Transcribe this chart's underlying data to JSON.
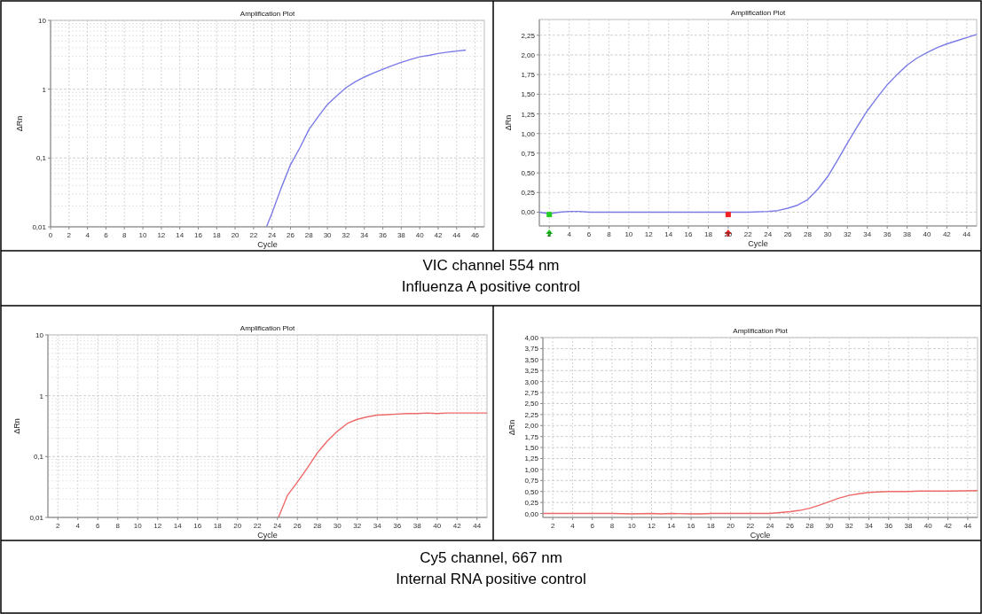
{
  "chart_data": [
    {
      "type": "line",
      "title": "Amplification Plot",
      "xlabel": "Cycle",
      "ylabel": "ΔRn",
      "log": "y",
      "grid": true,
      "xlim": [
        0,
        47
      ],
      "xticks": [
        0,
        2,
        4,
        6,
        8,
        10,
        12,
        14,
        16,
        18,
        20,
        22,
        24,
        26,
        28,
        30,
        32,
        34,
        36,
        38,
        40,
        42,
        44,
        46
      ],
      "ylim": [
        0.01,
        10
      ],
      "yticks": [
        {
          "value": 0.01,
          "label": "0,01"
        },
        {
          "value": 0.1,
          "label": "0,1"
        },
        {
          "value": 1,
          "label": "1"
        },
        {
          "value": 10,
          "label": "10"
        }
      ],
      "series": [
        {
          "color": "#7b7be8",
          "x": [
            23.4,
            24,
            25,
            26,
            27,
            28,
            29,
            30,
            31,
            32,
            33,
            34,
            35,
            36,
            37,
            38,
            39,
            40,
            41,
            42,
            43,
            44,
            45
          ],
          "values": [
            0.01,
            0.016,
            0.037,
            0.08,
            0.14,
            0.26,
            0.4,
            0.6,
            0.8,
            1.05,
            1.28,
            1.5,
            1.72,
            1.95,
            2.2,
            2.45,
            2.7,
            2.95,
            3.1,
            3.3,
            3.45,
            3.58,
            3.7
          ]
        }
      ],
      "annotations": [
        "VIC channel 554 nm",
        "Influenza A positive control"
      ]
    },
    {
      "type": "line",
      "title": "Amplification Plot",
      "xlabel": "Cycle",
      "ylabel": "ΔRn",
      "grid": true,
      "xlim": [
        1,
        45
      ],
      "xticks": [
        2,
        4,
        6,
        8,
        10,
        12,
        14,
        16,
        18,
        20,
        22,
        24,
        26,
        28,
        30,
        32,
        34,
        36,
        38,
        40,
        42,
        44
      ],
      "ylim": [
        -0.175,
        2.45
      ],
      "yticks": [
        {
          "value": 0,
          "label": "0,00"
        },
        {
          "value": 0.25,
          "label": "0,25"
        },
        {
          "value": 0.5,
          "label": "0,50"
        },
        {
          "value": 0.75,
          "label": "0,75"
        },
        {
          "value": 1,
          "label": "1,00"
        },
        {
          "value": 1.25,
          "label": "1,25"
        },
        {
          "value": 1.5,
          "label": "1,50"
        },
        {
          "value": 1.75,
          "label": "1,75"
        },
        {
          "value": 2,
          "label": "2,00"
        },
        {
          "value": 2.25,
          "label": "2,25"
        }
      ],
      "series": [
        {
          "color": "#7b7be8",
          "x": [
            1,
            2,
            3,
            4,
            5,
            6,
            8,
            11,
            14,
            19,
            20,
            22,
            24,
            25,
            26,
            27,
            28,
            29,
            30,
            31,
            32,
            33,
            34,
            35,
            36,
            37,
            38,
            39,
            40,
            41,
            42,
            43,
            44,
            45
          ],
          "values": [
            0,
            -0.02,
            0,
            0.01,
            0.01,
            0,
            0,
            0,
            0,
            0,
            0,
            0,
            0.01,
            0.02,
            0.05,
            0.09,
            0.16,
            0.29,
            0.45,
            0.66,
            0.88,
            1.09,
            1.29,
            1.46,
            1.62,
            1.75,
            1.87,
            1.96,
            2.03,
            2.09,
            2.14,
            2.18,
            2.22,
            2.26
          ]
        },
        {
          "type": "scatter",
          "marker": "square",
          "x": [
            2,
            20
          ],
          "values": [
            -0.03,
            -0.03
          ],
          "colors": [
            "#22cc22",
            "#ee2222"
          ]
        }
      ]
    },
    {
      "type": "line",
      "title": "Amplification Plot",
      "xlabel": "Cycle",
      "ylabel": "ΔRn",
      "log": "y",
      "grid": true,
      "xlim": [
        1,
        45
      ],
      "xticks": [
        2,
        4,
        6,
        8,
        10,
        12,
        14,
        16,
        18,
        20,
        22,
        24,
        26,
        28,
        30,
        32,
        34,
        36,
        38,
        40,
        42,
        44
      ],
      "ylim": [
        0.01,
        10
      ],
      "yticks": [
        {
          "value": 0.01,
          "label": "0,01"
        },
        {
          "value": 0.1,
          "label": "0,1"
        },
        {
          "value": 1,
          "label": "1"
        },
        {
          "value": 10,
          "label": "10"
        }
      ],
      "series": [
        {
          "color": "#ee6a6a",
          "x": [
            24.1,
            25,
            26,
            27,
            28,
            29,
            30,
            31,
            32,
            33,
            34,
            35,
            36,
            37,
            38,
            39,
            40,
            41,
            42,
            43,
            44,
            45
          ],
          "values": [
            0.01,
            0.023,
            0.038,
            0.065,
            0.115,
            0.18,
            0.26,
            0.35,
            0.41,
            0.45,
            0.48,
            0.49,
            0.5,
            0.51,
            0.51,
            0.52,
            0.51,
            0.52,
            0.52,
            0.52,
            0.52,
            0.52
          ]
        }
      ],
      "annotations": [
        "Cy5 channel, 667 nm",
        "Internal RNA positive control"
      ]
    },
    {
      "type": "line",
      "title": "Amplification Plot",
      "xlabel": "Cycle",
      "ylabel": "ΔRn",
      "grid": true,
      "xlim": [
        1,
        45
      ],
      "xticks": [
        2,
        4,
        6,
        8,
        10,
        12,
        14,
        16,
        18,
        20,
        22,
        24,
        26,
        28,
        30,
        32,
        34,
        36,
        38,
        40,
        42,
        44
      ],
      "ylim": [
        -0.09,
        4
      ],
      "yticks": [
        {
          "value": 0,
          "label": "0,00"
        },
        {
          "value": 0.25,
          "label": "0,25"
        },
        {
          "value": 0.5,
          "label": "0,50"
        },
        {
          "value": 0.75,
          "label": "0,75"
        },
        {
          "value": 1,
          "label": "1,00"
        },
        {
          "value": 1.25,
          "label": "1,25"
        },
        {
          "value": 1.5,
          "label": "1,50"
        },
        {
          "value": 1.75,
          "label": "1,75"
        },
        {
          "value": 2,
          "label": "2,00"
        },
        {
          "value": 2.25,
          "label": "2,25"
        },
        {
          "value": 2.5,
          "label": "2,50"
        },
        {
          "value": 2.75,
          "label": "2,75"
        },
        {
          "value": 3,
          "label": "3,00"
        },
        {
          "value": 3.25,
          "label": "3,25"
        },
        {
          "value": 3.5,
          "label": "3,50"
        },
        {
          "value": 3.75,
          "label": "3,75"
        },
        {
          "value": 4,
          "label": "4,00"
        }
      ],
      "series": [
        {
          "color": "#ee6a6a",
          "x": [
            1,
            4,
            8,
            10,
            12,
            13,
            14,
            16,
            17,
            18,
            20,
            22,
            24,
            25,
            26,
            27,
            28,
            29,
            30,
            31,
            32,
            33,
            34,
            35,
            36,
            38,
            39,
            42,
            45
          ],
          "values": [
            0,
            0,
            0,
            -0.01,
            0,
            -0.01,
            0,
            -0.01,
            -0.01,
            0,
            0,
            0,
            0,
            0.02,
            0.04,
            0.07,
            0.12,
            0.19,
            0.27,
            0.35,
            0.41,
            0.45,
            0.48,
            0.49,
            0.5,
            0.5,
            0.51,
            0.51,
            0.52
          ]
        }
      ]
    }
  ]
}
